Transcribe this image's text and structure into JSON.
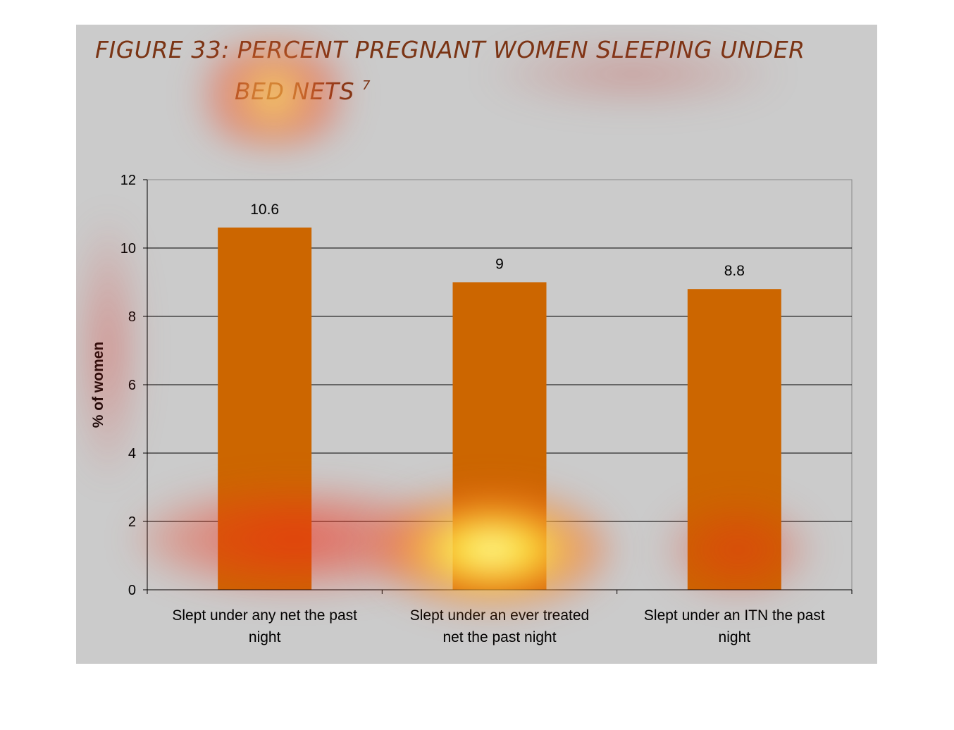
{
  "figure": {
    "title_line1": "FIGURE 33: PERCENT PREGNANT WOMEN SLEEPING UNDER",
    "title_line2": "BED NETS",
    "title_footnote": "7"
  },
  "chart_data": {
    "type": "bar",
    "title": "FIGURE 33: PERCENT PREGNANT WOMEN SLEEPING UNDER BED NETS 7",
    "categories": [
      [
        "Slept under any net the past",
        "night"
      ],
      [
        "Slept under an ever treated",
        "net the past night"
      ],
      [
        "Slept under an ITN the past",
        "night"
      ]
    ],
    "values": [
      10.6,
      9,
      8.8
    ],
    "value_labels": [
      "10.6",
      "9",
      "8.8"
    ],
    "xlabel": "",
    "ylabel": "% of women",
    "ylim": [
      0,
      12
    ],
    "yticks": [
      0,
      2,
      4,
      6,
      8,
      10,
      12
    ],
    "grid": true,
    "bar_color": "#cc6600",
    "plot_background": "#cbcbcb"
  }
}
